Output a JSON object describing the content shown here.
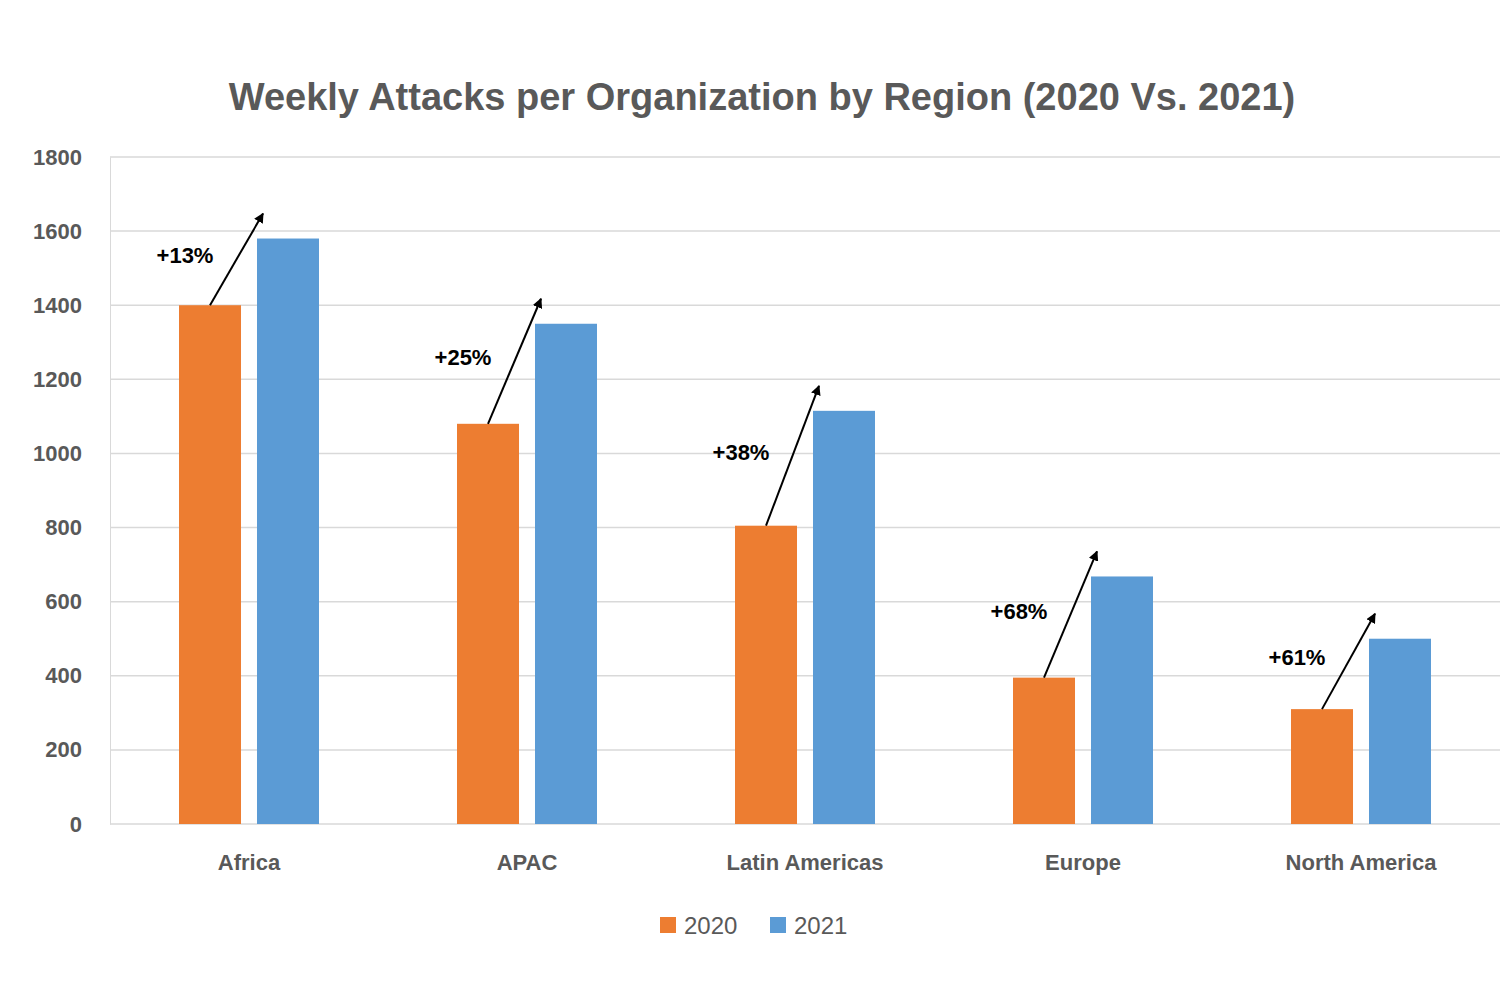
{
  "chart_data": {
    "type": "bar",
    "title": "Weekly Attacks per Organization by Region (2020 Vs. 2021)",
    "categories": [
      "Africa",
      "APAC",
      "Latin Americas",
      "Europe",
      "North America"
    ],
    "series": [
      {
        "name": "2020",
        "color": "#ed7d31",
        "values": [
          1400,
          1080,
          805,
          395,
          310
        ]
      },
      {
        "name": "2021",
        "color": "#5b9bd5",
        "values": [
          1580,
          1350,
          1115,
          668,
          500
        ]
      }
    ],
    "annotations": [
      "+13%",
      "+25%",
      "+38%",
      "+68%",
      "+61%"
    ],
    "ylim": [
      0,
      1800
    ],
    "yticks": [
      0,
      200,
      400,
      600,
      800,
      1000,
      1200,
      1400,
      1600,
      1800
    ],
    "grid": true,
    "legend": "bottom"
  }
}
